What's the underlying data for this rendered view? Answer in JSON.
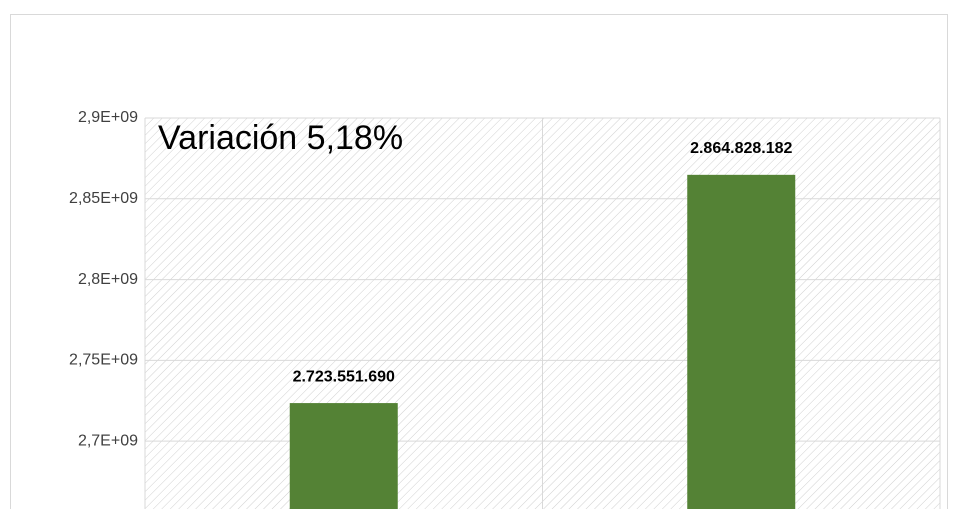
{
  "chart_data": {
    "type": "bar",
    "annotation": "Variación 5,18%",
    "categories": [
      null,
      null
    ],
    "values": [
      2723551690,
      2864828182
    ],
    "value_labels": [
      "2.723.551.690",
      "2.864.828.182"
    ],
    "color": "#548235",
    "ylim": [
      2658000000,
      2900000000
    ],
    "yticks": [
      {
        "value": 2700000000,
        "label": "2,7E+09"
      },
      {
        "value": 2750000000,
        "label": "2,75E+09"
      },
      {
        "value": 2800000000,
        "label": "2,8E+09"
      },
      {
        "value": 2850000000,
        "label": "2,85E+09"
      },
      {
        "value": 2900000000,
        "label": "2,9E+09"
      }
    ],
    "grid": true
  }
}
